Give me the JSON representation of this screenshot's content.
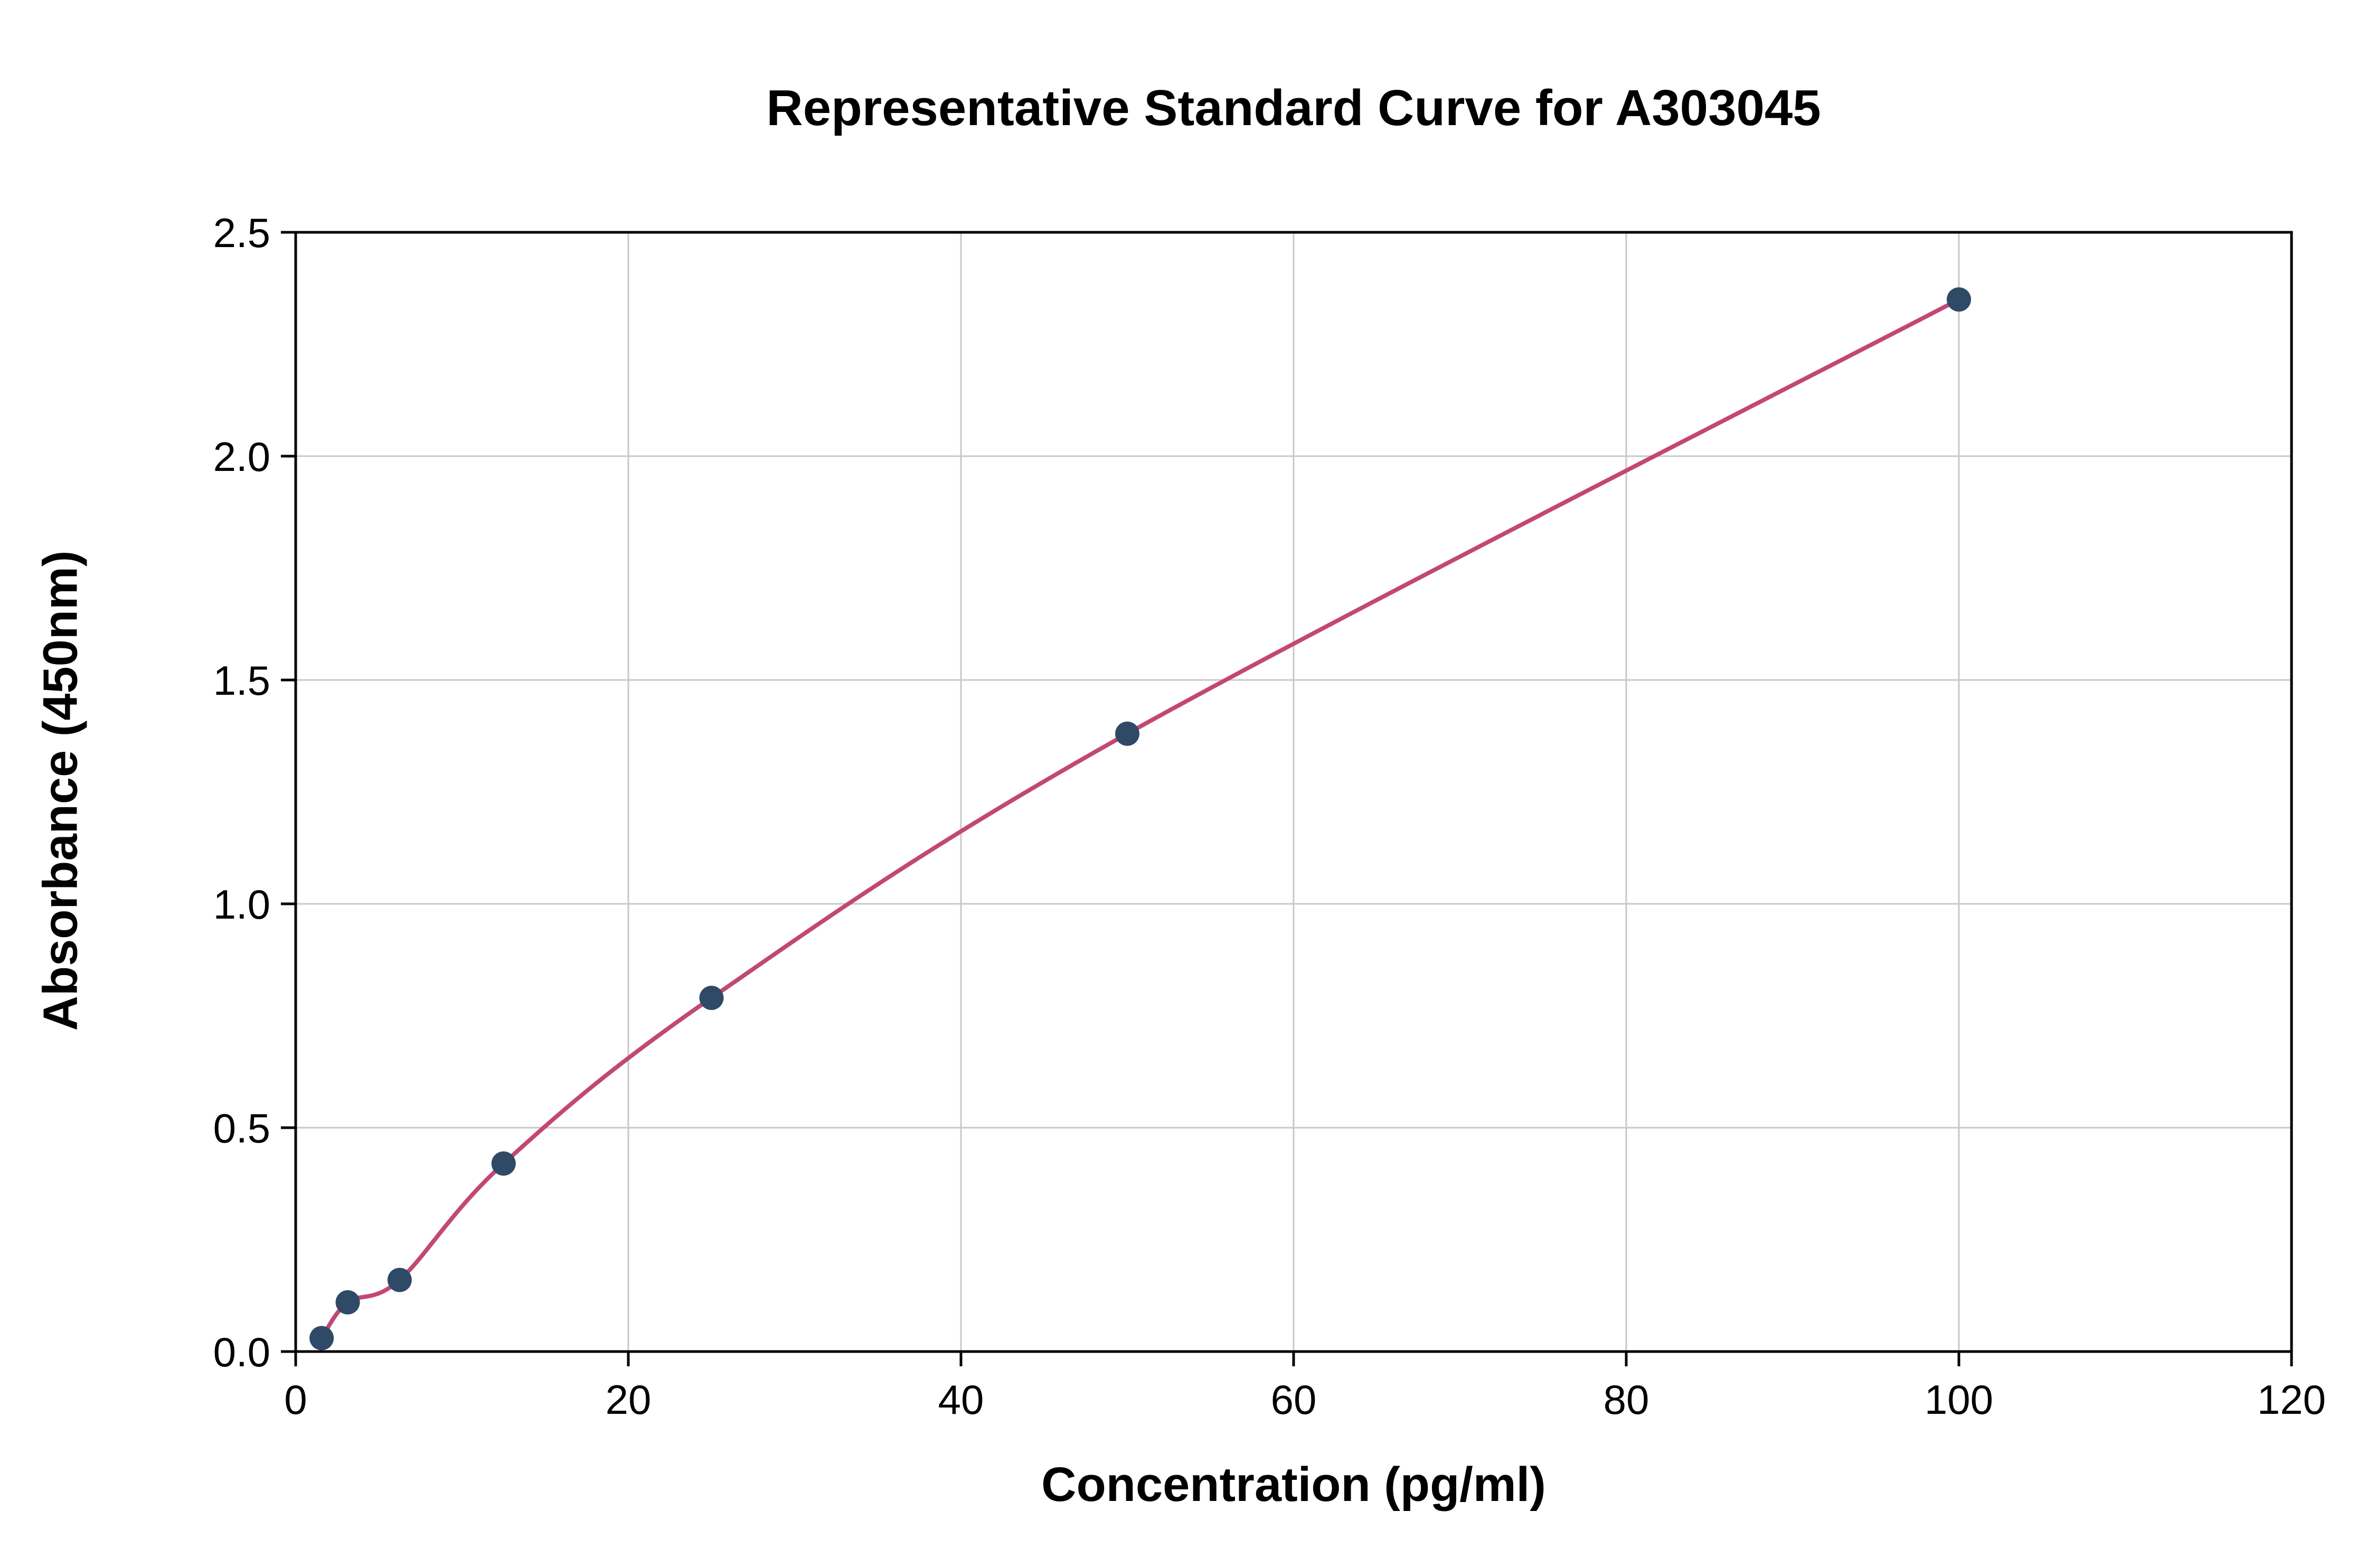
{
  "chart_data": {
    "type": "scatter",
    "title": "Representative Standard Curve for A303045",
    "xlabel": "Concentration (pg/ml)",
    "ylabel": "Absorbance (450nm)",
    "xlim": [
      0,
      120
    ],
    "ylim": [
      0,
      2.5
    ],
    "x_ticks": [
      0,
      20,
      40,
      60,
      80,
      100,
      120
    ],
    "y_ticks": [
      0.0,
      0.5,
      1.0,
      1.5,
      2.0,
      2.5
    ],
    "grid": true,
    "legend": "none",
    "points": [
      {
        "x": 1.56,
        "y": 0.03
      },
      {
        "x": 3.13,
        "y": 0.11
      },
      {
        "x": 6.25,
        "y": 0.16
      },
      {
        "x": 12.5,
        "y": 0.42
      },
      {
        "x": 25,
        "y": 0.79
      },
      {
        "x": 50,
        "y": 1.38
      },
      {
        "x": 100,
        "y": 2.35
      }
    ],
    "colors": {
      "point": "#2e4a66",
      "curve": "#c2487300",
      "curve_stroke": "#c24873",
      "grid": "#c8c8c8",
      "axis": "#000000",
      "background": "#ffffff"
    }
  }
}
